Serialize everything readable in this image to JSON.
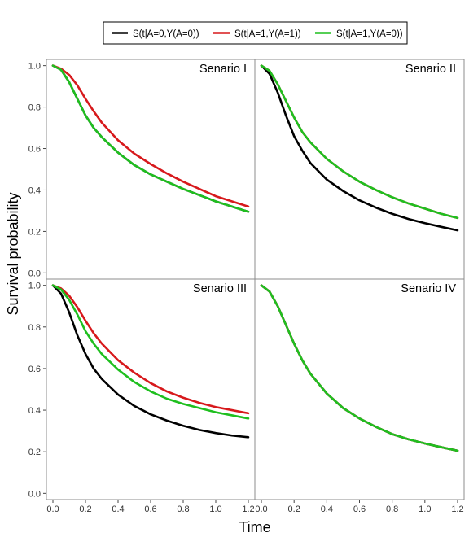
{
  "chart_data": {
    "type": "line",
    "xlabel": "Time",
    "ylabel": "Survival probability",
    "xlim": [
      -0.04,
      1.24
    ],
    "ylim": [
      -0.03,
      1.03
    ],
    "xticks": [
      "0.0",
      "0.2",
      "0.4",
      "0.6",
      "0.8",
      "1.0",
      "1.2"
    ],
    "yticks": [
      "0.0",
      "0.2",
      "0.4",
      "0.6",
      "0.8",
      "1.0"
    ],
    "legend": {
      "position": "top-center",
      "entries": [
        {
          "name": "S(t|A=0,Y(A=0))",
          "color": "#000000"
        },
        {
          "name": "S(t|A=1,Y(A=1))",
          "color": "#d7191c"
        },
        {
          "name": "S(t|A=1,Y(A=0))",
          "color": "#1fbf1f"
        }
      ]
    },
    "x": [
      0,
      0.05,
      0.1,
      0.15,
      0.2,
      0.25,
      0.3,
      0.4,
      0.5,
      0.6,
      0.7,
      0.8,
      0.9,
      1.0,
      1.1,
      1.2
    ],
    "panels": [
      {
        "title": "Senario I",
        "series": [
          {
            "name": "S(t|A=0,Y(A=0))",
            "values": [
              1.0,
              0.98,
              0.92,
              0.84,
              0.76,
              0.7,
              0.655,
              0.58,
              0.52,
              0.475,
              0.44,
              0.405,
              0.375,
              0.345,
              0.32,
              0.295
            ]
          },
          {
            "name": "S(t|A=1,Y(A=1))",
            "values": [
              1.0,
              0.985,
              0.955,
              0.905,
              0.84,
              0.78,
              0.725,
              0.64,
              0.575,
              0.525,
              0.48,
              0.44,
              0.405,
              0.37,
              0.345,
              0.32
            ]
          },
          {
            "name": "S(t|A=1,Y(A=0))",
            "values": [
              1.0,
              0.98,
              0.92,
              0.84,
              0.76,
              0.7,
              0.655,
              0.58,
              0.52,
              0.475,
              0.44,
              0.405,
              0.375,
              0.345,
              0.32,
              0.295
            ]
          }
        ]
      },
      {
        "title": "Senario II",
        "series": [
          {
            "name": "S(t|A=0,Y(A=0))",
            "values": [
              1.0,
              0.96,
              0.87,
              0.76,
              0.66,
              0.59,
              0.53,
              0.45,
              0.395,
              0.35,
              0.315,
              0.285,
              0.26,
              0.24,
              0.222,
              0.205
            ]
          },
          {
            "name": "S(t|A=1,Y(A=1))",
            "values": [
              1.0,
              0.975,
              0.91,
              0.83,
              0.75,
              0.68,
              0.63,
              0.55,
              0.49,
              0.44,
              0.4,
              0.365,
              0.335,
              0.31,
              0.285,
              0.265
            ]
          },
          {
            "name": "S(t|A=1,Y(A=0))",
            "values": [
              1.0,
              0.975,
              0.91,
              0.83,
              0.75,
              0.68,
              0.63,
              0.55,
              0.49,
              0.44,
              0.4,
              0.365,
              0.335,
              0.31,
              0.285,
              0.265
            ]
          }
        ]
      },
      {
        "title": "Senario III",
        "series": [
          {
            "name": "S(t|A=0,Y(A=0))",
            "values": [
              1.0,
              0.96,
              0.87,
              0.76,
              0.67,
              0.6,
              0.55,
              0.475,
              0.42,
              0.38,
              0.35,
              0.325,
              0.305,
              0.29,
              0.278,
              0.27
            ]
          },
          {
            "name": "S(t|A=1,Y(A=1))",
            "values": [
              1.0,
              0.985,
              0.95,
              0.895,
              0.83,
              0.77,
              0.72,
              0.64,
              0.58,
              0.53,
              0.49,
              0.46,
              0.435,
              0.415,
              0.4,
              0.385
            ]
          },
          {
            "name": "S(t|A=1,Y(A=0))",
            "values": [
              1.0,
              0.98,
              0.93,
              0.86,
              0.78,
              0.72,
              0.67,
              0.595,
              0.535,
              0.49,
              0.455,
              0.43,
              0.41,
              0.39,
              0.375,
              0.36
            ]
          }
        ]
      },
      {
        "title": "Senario IV",
        "series": [
          {
            "name": "S(t|A=0,Y(A=0))",
            "values": [
              1.0,
              0.97,
              0.9,
              0.81,
              0.72,
              0.64,
              0.575,
              0.48,
              0.41,
              0.36,
              0.32,
              0.285,
              0.26,
              0.24,
              0.222,
              0.205
            ]
          },
          {
            "name": "S(t|A=1,Y(A=1))",
            "values": [
              1.0,
              0.97,
              0.9,
              0.81,
              0.72,
              0.64,
              0.575,
              0.48,
              0.41,
              0.36,
              0.32,
              0.285,
              0.26,
              0.24,
              0.222,
              0.205
            ]
          },
          {
            "name": "S(t|A=1,Y(A=0))",
            "values": [
              1.0,
              0.97,
              0.9,
              0.81,
              0.72,
              0.64,
              0.575,
              0.48,
              0.41,
              0.36,
              0.32,
              0.285,
              0.26,
              0.24,
              0.222,
              0.205
            ]
          }
        ]
      }
    ]
  }
}
